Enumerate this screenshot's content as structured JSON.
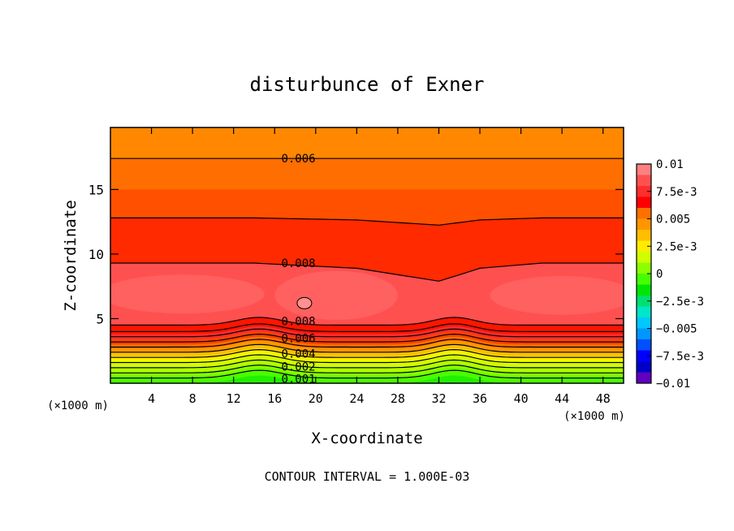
{
  "chart_data": {
    "type": "heatmap",
    "subtype": "filled-contour",
    "title": "disturbunce of Exner",
    "xlabel": "X-coordinate",
    "ylabel": "Z-coordinate",
    "x_unit": "(×1000 m)",
    "y_unit": "(×1000 m)",
    "xlim": [
      0,
      50
    ],
    "ylim": [
      0,
      19.8
    ],
    "x_ticks": [
      4,
      8,
      12,
      16,
      20,
      24,
      28,
      32,
      36,
      40,
      44,
      48
    ],
    "y_ticks": [
      5,
      10,
      15
    ],
    "footer": "CONTOUR INTERVAL = 1.000E-03",
    "colorbar": {
      "ticks": [
        "0.01",
        "7.5e-3",
        "0.005",
        "2.5e-3",
        "0",
        "−2.5e-3",
        "−0.005",
        "−7.5e-3",
        "−0.01"
      ],
      "colors": [
        "#ff8080",
        "#ff5050",
        "#ff2d2d",
        "#ff0000",
        "#ff7000",
        "#ff9600",
        "#ffbe00",
        "#ffeb00",
        "#cfff00",
        "#8cff00",
        "#46ff00",
        "#00e600",
        "#00e070",
        "#00e6c8",
        "#00c8ff",
        "#0096ff",
        "#0050ff",
        "#0000ff",
        "#0000c8",
        "#6000c0"
      ]
    },
    "contour_levels": [
      0.001,
      0.002,
      0.003,
      0.004,
      0.005,
      0.006,
      0.007,
      0.008,
      0.009,
      0.01
    ],
    "contour_labels": [
      {
        "text": "0.006",
        "x": 18,
        "z": 17.4
      },
      {
        "text": "0.008",
        "x": 18,
        "z": 9.3
      },
      {
        "text": "0.008",
        "x": 18,
        "z": 4.8
      },
      {
        "text": "0.006",
        "x": 18,
        "z": 3.5
      },
      {
        "text": "0.004",
        "x": 18,
        "z": 2.3
      },
      {
        "text": "0.002",
        "x": 18,
        "z": 1.3
      },
      {
        "text": "0.001",
        "x": 18,
        "z": 0.35
      }
    ]
  }
}
